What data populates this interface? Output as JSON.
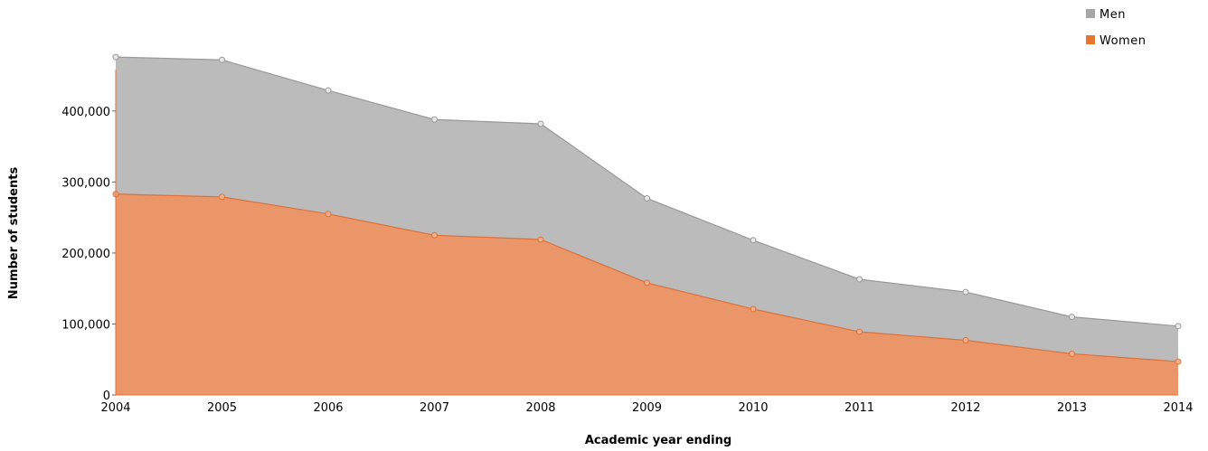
{
  "chart_data": {
    "type": "area",
    "stacked": true,
    "xlabel": "Academic year ending",
    "ylabel": "Number of students",
    "x": [
      "2004",
      "2005",
      "2006",
      "2007",
      "2008",
      "2009",
      "2010",
      "2011",
      "2012",
      "2013",
      "2014"
    ],
    "ylim": [
      0,
      480000
    ],
    "yticks": [
      0,
      100000,
      200000,
      300000,
      400000
    ],
    "ytick_labels": [
      "0",
      "100,000",
      "200,000",
      "300,000",
      "400,000"
    ],
    "legend_position": "top-right",
    "series": [
      {
        "name": "Men",
        "color": "#bbbbbb",
        "line_color": "#999999",
        "values": [
          193000,
          193000,
          174000,
          163000,
          163000,
          119000,
          97000,
          74000,
          68000,
          52000,
          50000
        ]
      },
      {
        "name": "Women",
        "color": "#ea9668",
        "line_color": "#e0703a",
        "values": [
          283000,
          279000,
          255000,
          225000,
          219000,
          158000,
          121000,
          89000,
          77000,
          58000,
          47000
        ]
      }
    ],
    "legend": [
      {
        "name": "Men",
        "color": "#a6a6a6"
      },
      {
        "name": "Women",
        "color": "#e8752f"
      }
    ],
    "axis_color": "#e0703a"
  }
}
